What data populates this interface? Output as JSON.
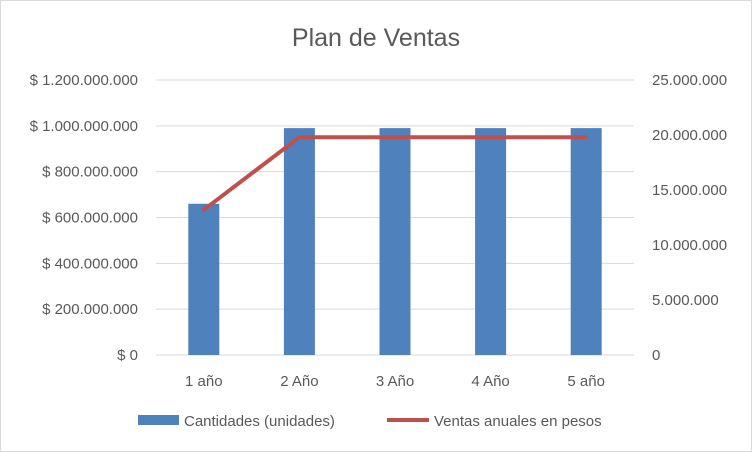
{
  "chart_data": {
    "type": "bar",
    "title": "Plan de Ventas",
    "categories": [
      "1 año",
      "2 Año",
      "3 Año",
      "4 Año",
      "5 año"
    ],
    "series": [
      {
        "name": "Cantidades (unidades)",
        "type": "bar",
        "axis": "left",
        "color": "#4f81bd",
        "values": [
          660000000,
          990000000,
          990000000,
          990000000,
          990000000
        ]
      },
      {
        "name": "Ventas anuales en pesos",
        "type": "line",
        "axis": "right",
        "color": "#c0504d",
        "values": [
          13200000,
          19800000,
          19800000,
          19800000,
          19800000
        ]
      }
    ],
    "y_left": {
      "ylim": [
        0,
        1200000000
      ],
      "ticks": [
        0,
        200000000,
        400000000,
        600000000,
        800000000,
        1000000000,
        1200000000
      ],
      "tick_labels": [
        "$ 0",
        "$ 200.000.000",
        "$ 400.000.000",
        "$ 600.000.000",
        "$ 800.000.000",
        "$ 1.000.000.000",
        "$ 1.200.000.000"
      ]
    },
    "y_right": {
      "ylim": [
        0,
        25000000
      ],
      "ticks": [
        0,
        5000000,
        10000000,
        15000000,
        20000000,
        25000000
      ],
      "tick_labels": [
        "0",
        "5.000.000",
        "10.000.000",
        "15.000.000",
        "20.000.000",
        "25.000.000"
      ]
    },
    "grid": true,
    "legend_position": "bottom"
  }
}
